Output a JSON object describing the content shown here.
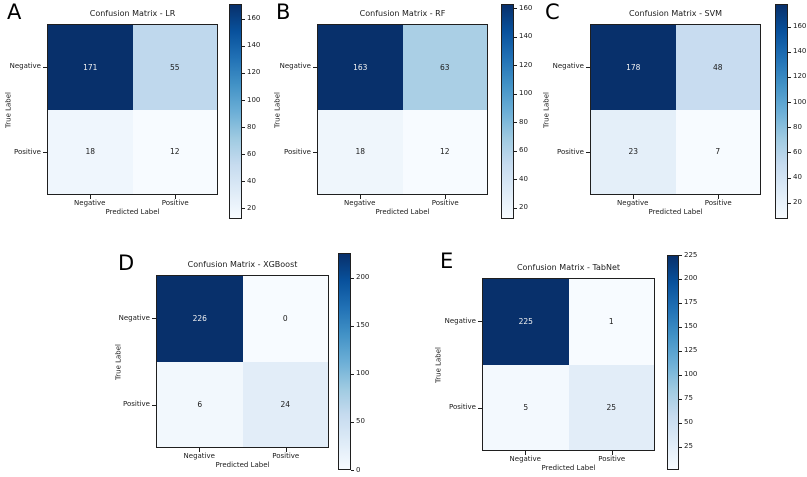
{
  "figure": {
    "background": "#ffffff",
    "colormap_name": "Blues",
    "colormap_stops": [
      "#f7fbff",
      "#deebf7",
      "#c6dbef",
      "#9ecae1",
      "#6baed6",
      "#4292c6",
      "#2171b5",
      "#08519c",
      "#08306b"
    ],
    "annotation_light_color": "#f2f2f2",
    "annotation_dark_color": "#1a1a1a",
    "spine_color": "#1f1f1f"
  },
  "chart_data": [
    {
      "id": "A",
      "panel_label": "A",
      "type": "heatmap",
      "title": "Confusion Matrix - LR",
      "xlabel": "Predicted Label",
      "ylabel": "True Label",
      "x_categories": [
        "Negative",
        "Positive"
      ],
      "y_categories": [
        "Negative",
        "Positive"
      ],
      "values": [
        [
          171,
          55
        ],
        [
          18,
          12
        ]
      ],
      "vmin": 12,
      "vmax": 171,
      "colorbar_ticks": [
        20,
        40,
        60,
        80,
        100,
        120,
        140,
        160
      ],
      "colormap": "Blues",
      "legend_position": "right-colorbar",
      "grid": false
    },
    {
      "id": "B",
      "panel_label": "B",
      "type": "heatmap",
      "title": "Confusion Matrix - RF",
      "xlabel": "Predicted Label",
      "ylabel": "True Label",
      "x_categories": [
        "Negative",
        "Positive"
      ],
      "y_categories": [
        "Negative",
        "Positive"
      ],
      "values": [
        [
          163,
          63
        ],
        [
          18,
          12
        ]
      ],
      "vmin": 12,
      "vmax": 163,
      "colorbar_ticks": [
        20,
        40,
        60,
        80,
        100,
        120,
        140,
        160
      ],
      "colormap": "Blues",
      "legend_position": "right-colorbar",
      "grid": false
    },
    {
      "id": "C",
      "panel_label": "C",
      "type": "heatmap",
      "title": "Confusion Matrix - SVM",
      "xlabel": "Predicted Label",
      "ylabel": "True Label",
      "x_categories": [
        "Negative",
        "Positive"
      ],
      "y_categories": [
        "Negative",
        "Positive"
      ],
      "values": [
        [
          178,
          48
        ],
        [
          23,
          7
        ]
      ],
      "vmin": 7,
      "vmax": 178,
      "colorbar_ticks": [
        20,
        40,
        60,
        80,
        100,
        120,
        140,
        160
      ],
      "colormap": "Blues",
      "legend_position": "right-colorbar",
      "grid": false
    },
    {
      "id": "D",
      "panel_label": "D",
      "type": "heatmap",
      "title": "Confusion Matrix - XGBoost",
      "xlabel": "Predicted Label",
      "ylabel": "True Label",
      "x_categories": [
        "Negative",
        "Positive"
      ],
      "y_categories": [
        "Negative",
        "Positive"
      ],
      "values": [
        [
          226,
          0
        ],
        [
          6,
          24
        ]
      ],
      "vmin": 0,
      "vmax": 226,
      "colorbar_ticks": [
        0,
        50,
        100,
        150,
        200
      ],
      "colormap": "Blues",
      "legend_position": "right-colorbar",
      "grid": false
    },
    {
      "id": "E",
      "panel_label": "E",
      "type": "heatmap",
      "title": "Confusion Matrix - TabNet",
      "xlabel": "Predicted Label",
      "ylabel": "True Label",
      "x_categories": [
        "Negative",
        "Positive"
      ],
      "y_categories": [
        "Negative",
        "Positive"
      ],
      "values": [
        [
          225,
          1
        ],
        [
          5,
          25
        ]
      ],
      "vmin": 1,
      "vmax": 225,
      "colorbar_ticks": [
        25,
        50,
        75,
        100,
        125,
        150,
        175,
        200,
        225
      ],
      "colormap": "Blues",
      "legend_position": "right-colorbar",
      "grid": false
    }
  ]
}
